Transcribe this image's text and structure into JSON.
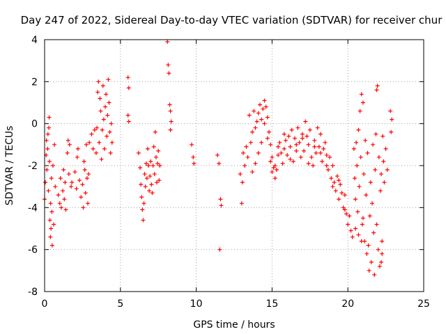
{
  "chart_data": {
    "type": "scatter",
    "title": "Day 247 of 2022, Sidereal Day-to-day VTEC variation (SDTVAR) for receiver chur",
    "xlabel": "GPS time / hours",
    "ylabel": "SDTVAR / TECUs",
    "xlim": [
      0,
      25
    ],
    "ylim": [
      -8,
      4
    ],
    "xticks": [
      0,
      5,
      10,
      15,
      20,
      25
    ],
    "yticks": [
      -8,
      -6,
      -4,
      -2,
      0,
      2,
      4
    ],
    "xtick_labels": [
      "0",
      "5",
      "10",
      "15",
      "20",
      "25"
    ],
    "ytick_labels": [
      "-8",
      "-6",
      "-4",
      "-2",
      "0",
      "2",
      "4"
    ],
    "grid": true,
    "marker": "+",
    "series": [
      {
        "name": "SDTVAR",
        "color": "#ff0000",
        "points": [
          [
            0.0,
            -3.6
          ],
          [
            0.05,
            -2.8
          ],
          [
            0.1,
            -1.5
          ],
          [
            0.12,
            -0.8
          ],
          [
            0.15,
            -2.2
          ],
          [
            0.2,
            -1.2
          ],
          [
            0.22,
            -0.5
          ],
          [
            0.25,
            -3.2
          ],
          [
            0.28,
            -0.2
          ],
          [
            0.3,
            0.3
          ],
          [
            0.32,
            -1.8
          ],
          [
            0.35,
            -4.6
          ],
          [
            0.38,
            -5.4
          ],
          [
            0.4,
            -3.8
          ],
          [
            0.42,
            -5.0
          ],
          [
            0.45,
            -2.6
          ],
          [
            0.48,
            -4.2
          ],
          [
            0.5,
            -5.8
          ],
          [
            0.55,
            -2.0
          ],
          [
            0.6,
            -4.8
          ],
          [
            0.65,
            -1.0
          ],
          [
            0.7,
            -3.0
          ],
          [
            0.9,
            -3.4
          ],
          [
            1.0,
            -3.8
          ],
          [
            1.05,
            -2.6
          ],
          [
            1.1,
            -4.0
          ],
          [
            1.2,
            -3.2
          ],
          [
            1.25,
            -2.2
          ],
          [
            1.3,
            -3.6
          ],
          [
            1.35,
            -2.8
          ],
          [
            1.4,
            -4.1
          ],
          [
            1.5,
            -1.4
          ],
          [
            1.55,
            -0.8
          ],
          [
            1.6,
            -2.4
          ],
          [
            1.65,
            -1.0
          ],
          [
            1.75,
            -3.0
          ],
          [
            1.8,
            -2.8
          ],
          [
            2.0,
            -2.3
          ],
          [
            2.1,
            -3.1
          ],
          [
            2.15,
            -1.6
          ],
          [
            2.2,
            -1.2
          ],
          [
            2.3,
            -2.7
          ],
          [
            2.4,
            -3.5
          ],
          [
            2.5,
            -2.9
          ],
          [
            2.55,
            -4.0
          ],
          [
            2.6,
            -1.8
          ],
          [
            2.65,
            -2.2
          ],
          [
            2.7,
            -3.3
          ],
          [
            2.75,
            -1.0
          ],
          [
            2.8,
            -2.6
          ],
          [
            2.85,
            -3.8
          ],
          [
            2.9,
            -2.4
          ],
          [
            2.95,
            -0.9
          ],
          [
            3.1,
            -0.5
          ],
          [
            3.2,
            -1.2
          ],
          [
            3.3,
            -0.3
          ],
          [
            3.4,
            -1.4
          ],
          [
            3.45,
            -0.2
          ],
          [
            3.5,
            1.5
          ],
          [
            3.55,
            2.0
          ],
          [
            3.6,
            -0.9
          ],
          [
            3.65,
            1.2
          ],
          [
            3.7,
            0.6
          ],
          [
            3.75,
            -1.7
          ],
          [
            3.8,
            -0.3
          ],
          [
            3.85,
            1.8
          ],
          [
            3.9,
            0.2
          ],
          [
            3.95,
            -1.2
          ],
          [
            4.0,
            0.8
          ],
          [
            4.05,
            1.4
          ],
          [
            4.1,
            -0.6
          ],
          [
            4.15,
            0.4
          ],
          [
            4.2,
            2.1
          ],
          [
            4.25,
            1.0
          ],
          [
            4.3,
            -0.4
          ],
          [
            4.35,
            -1.4
          ],
          [
            4.4,
            0.0
          ],
          [
            4.45,
            -0.9
          ],
          [
            5.5,
            2.2
          ],
          [
            5.55,
            1.7
          ],
          [
            5.5,
            0.4
          ],
          [
            5.55,
            0.1
          ],
          [
            6.2,
            -1.4
          ],
          [
            6.3,
            -2.1
          ],
          [
            6.35,
            -2.9
          ],
          [
            6.4,
            -3.5
          ],
          [
            6.45,
            -4.1
          ],
          [
            6.5,
            -4.6
          ],
          [
            6.55,
            -3.8
          ],
          [
            6.6,
            -2.4
          ],
          [
            6.65,
            -3.0
          ],
          [
            6.7,
            -1.9
          ],
          [
            6.75,
            -2.6
          ],
          [
            6.8,
            -1.2
          ],
          [
            6.85,
            -2.0
          ],
          [
            6.9,
            -3.2
          ],
          [
            6.95,
            -2.5
          ],
          [
            7.0,
            -1.8
          ],
          [
            7.05,
            -2.9
          ],
          [
            7.1,
            -3.3
          ],
          [
            7.15,
            -2.0
          ],
          [
            7.2,
            -1.1
          ],
          [
            7.25,
            -2.4
          ],
          [
            7.3,
            -0.4
          ],
          [
            7.35,
            -1.6
          ],
          [
            7.4,
            -2.8
          ],
          [
            7.45,
            -1.9
          ],
          [
            7.5,
            -1.3
          ],
          [
            7.55,
            -2.7
          ],
          [
            7.6,
            -2.0
          ],
          [
            8.1,
            3.9
          ],
          [
            8.15,
            2.8
          ],
          [
            8.2,
            2.4
          ],
          [
            8.25,
            0.9
          ],
          [
            8.3,
            0.6
          ],
          [
            8.35,
            0.1
          ],
          [
            8.3,
            -0.3
          ],
          [
            9.7,
            -1.0
          ],
          [
            9.8,
            -1.6
          ],
          [
            9.85,
            -1.9
          ],
          [
            11.4,
            -1.5
          ],
          [
            11.5,
            -1.9
          ],
          [
            11.6,
            -3.6
          ],
          [
            11.65,
            -3.9
          ],
          [
            11.55,
            -6.0
          ],
          [
            12.9,
            -2.4
          ],
          [
            13.0,
            -3.8
          ],
          [
            13.05,
            -2.8
          ],
          [
            13.1,
            -1.4
          ],
          [
            13.2,
            -2.0
          ],
          [
            13.3,
            -1.1
          ],
          [
            13.4,
            -1.6
          ],
          [
            13.5,
            0.4
          ],
          [
            13.6,
            -0.9
          ],
          [
            13.7,
            -0.4
          ],
          [
            13.8,
            0.6
          ],
          [
            13.9,
            -0.2
          ],
          [
            14.0,
            0.1
          ],
          [
            14.1,
            0.5
          ],
          [
            14.2,
            0.9
          ],
          [
            14.3,
            0.2
          ],
          [
            14.4,
            0.7
          ],
          [
            14.5,
            1.1
          ],
          [
            14.6,
            0.8
          ],
          [
            14.7,
            0.3
          ],
          [
            14.8,
            -0.4
          ],
          [
            14.9,
            -1.0
          ],
          [
            15.0,
            -1.6
          ],
          [
            15.1,
            -2.1
          ],
          [
            15.2,
            -2.6
          ],
          [
            15.3,
            -2.2
          ],
          [
            15.4,
            -1.5
          ],
          [
            15.5,
            -0.9
          ],
          [
            15.6,
            -1.4
          ],
          [
            15.7,
            -1.9
          ],
          [
            15.8,
            -1.2
          ],
          [
            15.9,
            -0.8
          ],
          [
            16.0,
            -1.5
          ],
          [
            16.1,
            -0.6
          ],
          [
            16.2,
            -1.1
          ],
          [
            16.3,
            -0.3
          ],
          [
            16.4,
            -1.8
          ],
          [
            16.5,
            -0.7
          ],
          [
            16.6,
            -1.0
          ],
          [
            16.7,
            -0.2
          ],
          [
            16.8,
            -0.9
          ],
          [
            16.9,
            -1.6
          ],
          [
            17.0,
            -0.5
          ],
          [
            17.1,
            -1.3
          ],
          [
            17.2,
            0.1
          ],
          [
            17.3,
            -0.6
          ],
          [
            17.4,
            -1.0
          ],
          [
            17.5,
            -0.3
          ],
          [
            17.6,
            -1.6
          ],
          [
            17.7,
            -2.0
          ],
          [
            17.8,
            -0.8
          ],
          [
            17.9,
            -1.4
          ],
          [
            18.0,
            -0.2
          ],
          [
            18.1,
            -1.1
          ],
          [
            18.2,
            -0.5
          ],
          [
            18.3,
            -1.8
          ],
          [
            18.4,
            -1.2
          ],
          [
            18.5,
            -0.9
          ],
          [
            18.6,
            -1.5
          ],
          [
            18.7,
            -2.2
          ],
          [
            18.8,
            -1.6
          ],
          [
            18.9,
            -2.6
          ],
          [
            19.0,
            -2.0
          ],
          [
            19.1,
            -2.8
          ],
          [
            19.2,
            -3.2
          ],
          [
            19.3,
            -2.5
          ],
          [
            19.4,
            -3.6
          ],
          [
            19.5,
            -2.9
          ],
          [
            19.6,
            -3.3
          ],
          [
            19.7,
            -4.0
          ],
          [
            19.8,
            -3.4
          ],
          [
            19.9,
            -4.3
          ],
          [
            20.0,
            -4.8
          ],
          [
            20.1,
            -4.4
          ],
          [
            20.2,
            -5.1
          ],
          [
            20.3,
            -5.4
          ],
          [
            14.9,
            -1.8
          ],
          [
            15.0,
            -2.3
          ],
          [
            15.2,
            -2.0
          ],
          [
            15.4,
            -1.1
          ],
          [
            15.8,
            -0.5
          ],
          [
            16.2,
            -1.7
          ],
          [
            16.6,
            -1.3
          ],
          [
            17.0,
            -0.7
          ],
          [
            17.4,
            -1.9
          ],
          [
            17.8,
            -1.1
          ],
          [
            18.2,
            -1.4
          ],
          [
            18.6,
            -2.0
          ],
          [
            19.0,
            -3.0
          ],
          [
            19.4,
            -2.7
          ],
          [
            19.8,
            -4.1
          ],
          [
            13.7,
            -2.3
          ],
          [
            13.9,
            -1.9
          ],
          [
            14.1,
            -1.4
          ],
          [
            14.3,
            -0.9
          ],
          [
            14.5,
            0.0
          ],
          [
            14.7,
            -0.7
          ],
          [
            20.4,
            -1.2
          ],
          [
            20.45,
            -2.6
          ],
          [
            20.5,
            -3.6
          ],
          [
            20.55,
            -0.9
          ],
          [
            20.6,
            -2.0
          ],
          [
            20.65,
            -4.2
          ],
          [
            20.7,
            -0.3
          ],
          [
            20.75,
            -3.0
          ],
          [
            20.8,
            0.6
          ],
          [
            20.85,
            -1.6
          ],
          [
            20.9,
            1.4
          ],
          [
            20.95,
            -4.8
          ],
          [
            21.0,
            1.0
          ],
          [
            21.05,
            -2.4
          ],
          [
            21.1,
            -5.6
          ],
          [
            21.15,
            -0.8
          ],
          [
            21.2,
            -3.4
          ],
          [
            21.25,
            -6.2
          ],
          [
            21.3,
            -1.4
          ],
          [
            21.35,
            -5.8
          ],
          [
            21.4,
            -7.0
          ],
          [
            21.45,
            -4.4
          ],
          [
            21.5,
            -2.8
          ],
          [
            21.55,
            -6.6
          ],
          [
            21.6,
            -3.8
          ],
          [
            21.65,
            -1.0
          ],
          [
            21.7,
            -5.2
          ],
          [
            21.75,
            -7.2
          ],
          [
            21.8,
            -2.2
          ],
          [
            21.85,
            -0.5
          ],
          [
            21.9,
            -4.8
          ],
          [
            21.95,
            1.8
          ],
          [
            22.0,
            -6.0
          ],
          [
            22.05,
            -1.6
          ],
          [
            22.1,
            -6.8
          ],
          [
            22.15,
            -3.2
          ],
          [
            22.2,
            -2.4
          ],
          [
            22.25,
            -5.6
          ],
          [
            22.3,
            -0.6
          ],
          [
            22.35,
            -1.8
          ],
          [
            22.4,
            -2.8
          ],
          [
            22.5,
            -1.2
          ],
          [
            22.6,
            -2.2
          ],
          [
            22.8,
            0.6
          ],
          [
            22.85,
            -0.4
          ],
          [
            22.9,
            0.2
          ],
          [
            22.2,
            -6.6
          ],
          [
            22.25,
            -6.2
          ],
          [
            21.9,
            1.6
          ],
          [
            20.5,
            -5.0
          ],
          [
            20.7,
            -5.3
          ],
          [
            20.9,
            -5.6
          ],
          [
            21.0,
            -4.5
          ]
        ]
      }
    ]
  }
}
